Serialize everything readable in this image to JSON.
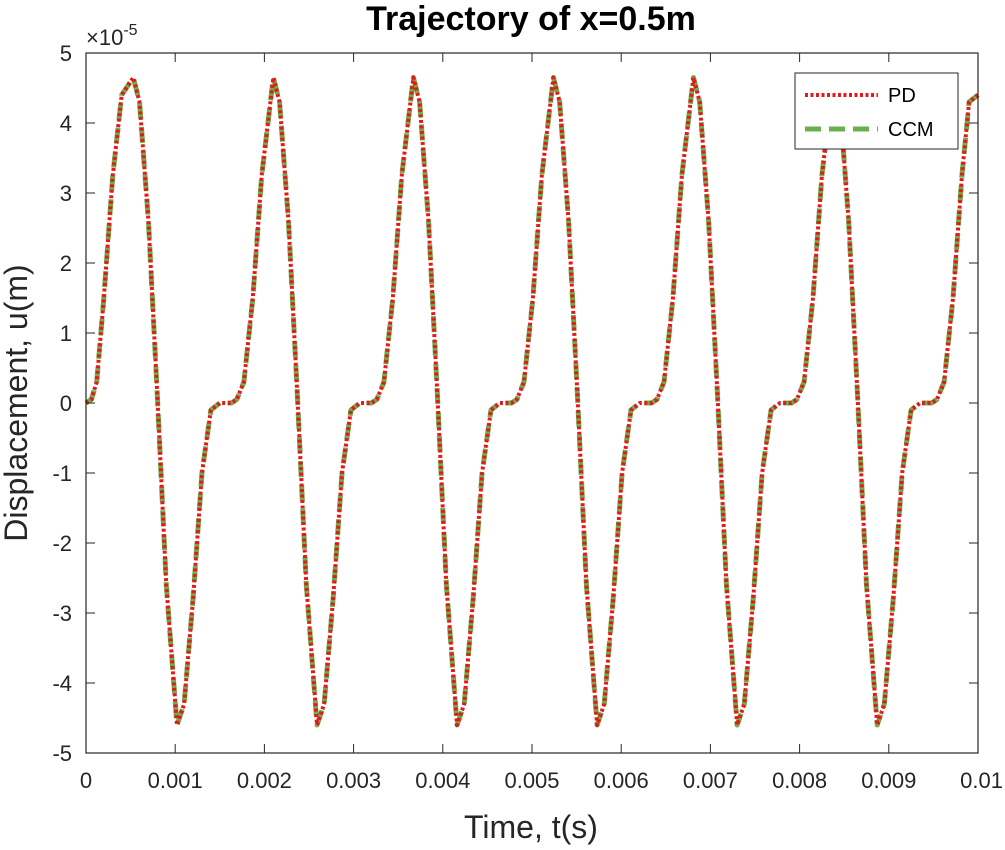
{
  "chart_data": {
    "type": "line",
    "title": "Trajectory of x=0.5m",
    "xlabel": "Time, t(s)",
    "ylabel": "Displacement, u(m)",
    "y_exponent_label": "×10",
    "y_exponent_value": "-5",
    "xlim": [
      0,
      0.01
    ],
    "ylim": [
      -5,
      5
    ],
    "x_ticks": [
      0,
      0.001,
      0.002,
      0.003,
      0.004,
      0.005,
      0.006,
      0.007,
      0.008,
      0.009,
      0.01
    ],
    "x_tick_labels": [
      "0",
      "0.001",
      "0.002",
      "0.003",
      "0.004",
      "0.005",
      "0.006",
      "0.007",
      "0.008",
      "0.009",
      "0.01"
    ],
    "y_ticks": [
      -5,
      -4,
      -3,
      -2,
      -1,
      0,
      1,
      2,
      3,
      4,
      5
    ],
    "y_tick_labels": [
      "-5",
      "-4",
      "-3",
      "-2",
      "-1",
      "0",
      "1",
      "2",
      "3",
      "4",
      "5"
    ],
    "grid": false,
    "legend_position": "top-right",
    "period": 0.00157,
    "series": [
      {
        "name": "PD",
        "color": "#e31a1c",
        "style": "dotted",
        "x": [
          0,
          6e-05,
          0.00012,
          0.0002,
          0.0003,
          0.0004,
          0.00053,
          0.0006,
          0.0007,
          0.0008,
          0.0009,
          0.00102,
          0.0011,
          0.0012,
          0.0013,
          0.0014,
          0.0015,
          0.00157,
          0.00163,
          0.00169,
          0.00177,
          0.00187,
          0.00197,
          0.0021,
          0.00217,
          0.00227,
          0.00237,
          0.00247,
          0.00259,
          0.00267,
          0.00277,
          0.00287,
          0.00297,
          0.00307,
          0.00314,
          0.0032,
          0.00326,
          0.00334,
          0.00344,
          0.00354,
          0.00367,
          0.00374,
          0.00384,
          0.00394,
          0.00404,
          0.00416,
          0.00424,
          0.00434,
          0.00444,
          0.00454,
          0.00464,
          0.00471,
          0.00477,
          0.00483,
          0.00491,
          0.00501,
          0.00511,
          0.00524,
          0.00531,
          0.00541,
          0.00551,
          0.00561,
          0.00573,
          0.00581,
          0.00591,
          0.00601,
          0.00611,
          0.00621,
          0.00628,
          0.00634,
          0.0064,
          0.00648,
          0.00658,
          0.00668,
          0.00681,
          0.00688,
          0.00698,
          0.00708,
          0.00718,
          0.0073,
          0.00738,
          0.00748,
          0.00758,
          0.00768,
          0.00778,
          0.00785,
          0.00791,
          0.00797,
          0.00805,
          0.00815,
          0.00825,
          0.00838,
          0.00845,
          0.00855,
          0.00865,
          0.00875,
          0.00887,
          0.00895,
          0.00905,
          0.00915,
          0.00925,
          0.00935,
          0.00942,
          0.00948,
          0.00954,
          0.00962,
          0.00972,
          0.00982,
          0.0099,
          0.01
        ],
        "y": [
          0,
          0.05,
          0.3,
          1.5,
          3.25,
          4.4,
          4.65,
          4.3,
          2.6,
          0.1,
          -2.6,
          -4.6,
          -4.3,
          -2.8,
          -1.0,
          -0.1,
          0,
          0,
          0,
          0.05,
          0.3,
          1.5,
          3.25,
          4.65,
          4.3,
          2.6,
          0.1,
          -2.6,
          -4.6,
          -4.3,
          -2.8,
          -1.0,
          -0.1,
          0,
          0,
          0,
          0.05,
          0.3,
          1.5,
          3.25,
          4.65,
          4.3,
          2.6,
          0.1,
          -2.6,
          -4.6,
          -4.3,
          -2.8,
          -1.0,
          -0.1,
          0,
          0,
          0,
          0.05,
          0.3,
          1.5,
          3.25,
          4.65,
          4.3,
          2.6,
          0.1,
          -2.6,
          -4.6,
          -4.3,
          -2.8,
          -1.0,
          -0.1,
          0,
          0,
          0,
          0.05,
          0.3,
          1.5,
          3.25,
          4.65,
          4.3,
          2.6,
          0.1,
          -2.6,
          -4.6,
          -4.3,
          -2.8,
          -1.0,
          -0.1,
          0,
          0,
          0,
          0.05,
          0.3,
          1.5,
          3.25,
          4.65,
          4.3,
          2.6,
          0.1,
          -2.6,
          -4.6,
          -4.3,
          -2.8,
          -1.0,
          -0.1,
          0,
          0,
          0,
          0.05,
          0.3,
          1.5,
          3.25,
          4.3,
          4.4
        ]
      },
      {
        "name": "CCM",
        "color": "#6ab04c",
        "style": "dashed",
        "x": [
          0,
          6e-05,
          0.00012,
          0.0002,
          0.0003,
          0.0004,
          0.00053,
          0.0006,
          0.0007,
          0.0008,
          0.0009,
          0.00102,
          0.0011,
          0.0012,
          0.0013,
          0.0014,
          0.0015,
          0.00157,
          0.00163,
          0.00169,
          0.00177,
          0.00187,
          0.00197,
          0.0021,
          0.00217,
          0.00227,
          0.00237,
          0.00247,
          0.00259,
          0.00267,
          0.00277,
          0.00287,
          0.00297,
          0.00307,
          0.00314,
          0.0032,
          0.00326,
          0.00334,
          0.00344,
          0.00354,
          0.00367,
          0.00374,
          0.00384,
          0.00394,
          0.00404,
          0.00416,
          0.00424,
          0.00434,
          0.00444,
          0.00454,
          0.00464,
          0.00471,
          0.00477,
          0.00483,
          0.00491,
          0.00501,
          0.00511,
          0.00524,
          0.00531,
          0.00541,
          0.00551,
          0.00561,
          0.00573,
          0.00581,
          0.00591,
          0.00601,
          0.00611,
          0.00621,
          0.00628,
          0.00634,
          0.0064,
          0.00648,
          0.00658,
          0.00668,
          0.00681,
          0.00688,
          0.00698,
          0.00708,
          0.00718,
          0.0073,
          0.00738,
          0.00748,
          0.00758,
          0.00768,
          0.00778,
          0.00785,
          0.00791,
          0.00797,
          0.00805,
          0.00815,
          0.00825,
          0.00838,
          0.00845,
          0.00855,
          0.00865,
          0.00875,
          0.00887,
          0.00895,
          0.00905,
          0.00915,
          0.00925,
          0.00935,
          0.00942,
          0.00948,
          0.00954,
          0.00962,
          0.00972,
          0.00982,
          0.0099,
          0.01
        ],
        "y": [
          0,
          0.05,
          0.3,
          1.5,
          3.25,
          4.4,
          4.65,
          4.3,
          2.6,
          0.1,
          -2.6,
          -4.6,
          -4.3,
          -2.8,
          -1.0,
          -0.1,
          0,
          0,
          0,
          0.05,
          0.3,
          1.5,
          3.25,
          4.65,
          4.3,
          2.6,
          0.1,
          -2.6,
          -4.6,
          -4.3,
          -2.8,
          -1.0,
          -0.1,
          0,
          0,
          0,
          0.05,
          0.3,
          1.5,
          3.25,
          4.65,
          4.3,
          2.6,
          0.1,
          -2.6,
          -4.6,
          -4.3,
          -2.8,
          -1.0,
          -0.1,
          0,
          0,
          0,
          0.05,
          0.3,
          1.5,
          3.25,
          4.65,
          4.3,
          2.6,
          0.1,
          -2.6,
          -4.6,
          -4.3,
          -2.8,
          -1.0,
          -0.1,
          0,
          0,
          0,
          0.05,
          0.3,
          1.5,
          3.25,
          4.65,
          4.3,
          2.6,
          0.1,
          -2.6,
          -4.6,
          -4.3,
          -2.8,
          -1.0,
          -0.1,
          0,
          0,
          0,
          0.05,
          0.3,
          1.5,
          3.25,
          4.65,
          4.3,
          2.6,
          0.1,
          -2.6,
          -4.6,
          -4.3,
          -2.8,
          -1.0,
          -0.1,
          0,
          0,
          0,
          0.05,
          0.3,
          1.5,
          3.25,
          4.3,
          4.4
        ]
      }
    ]
  }
}
